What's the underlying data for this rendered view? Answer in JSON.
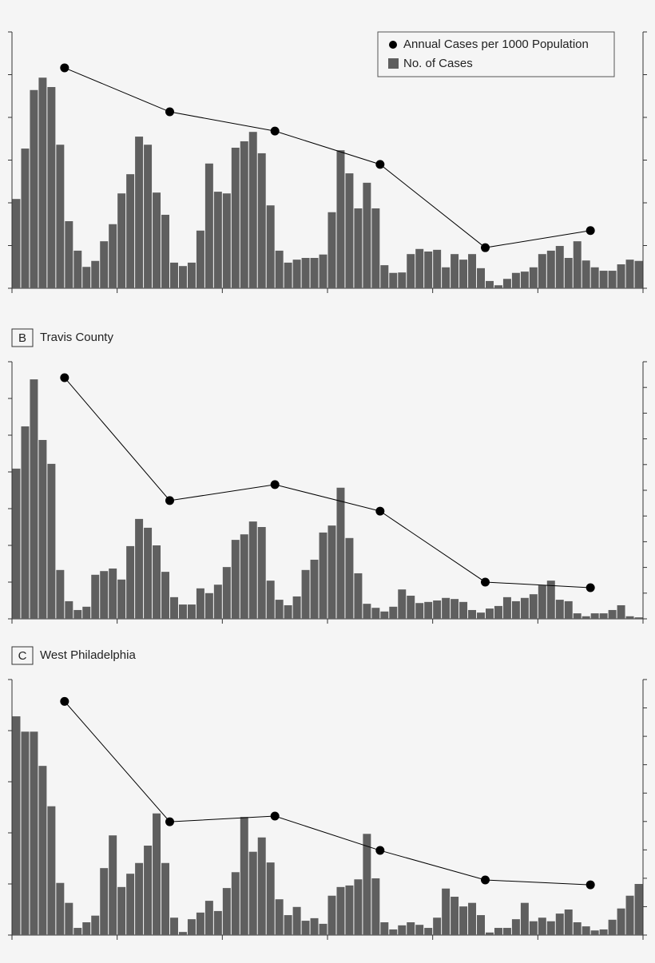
{
  "chart_data": [
    {
      "type": "bar",
      "legend": "upper right",
      "xlim": [
        0,
        72
      ],
      "xticks": [
        0,
        12,
        24,
        36,
        48,
        60,
        72
      ],
      "ylim": [
        0,
        6
      ],
      "yticks": [
        0,
        1,
        2,
        3,
        4,
        5,
        6
      ],
      "y2lim": [
        0,
        6
      ],
      "y2ticks": [
        0,
        1,
        2,
        3,
        4,
        5,
        6
      ],
      "series": [
        {
          "name": "Annual Cases per 1000 Population",
          "type": "line",
          "axis": "y2",
          "color": "#000000",
          "x": [
            6,
            18,
            30,
            42,
            54,
            66
          ],
          "values": [
            5.16,
            4.13,
            3.68,
            2.9,
            0.95,
            1.35
          ]
        },
        {
          "name": "No. of Cases",
          "type": "bar",
          "color": "#5f5f5f",
          "values": [
            2.09,
            3.27,
            4.64,
            4.93,
            4.71,
            3.36,
            1.57,
            0.88,
            0.5,
            0.64,
            1.1,
            1.5,
            2.22,
            2.67,
            3.55,
            3.36,
            2.24,
            1.72,
            0.6,
            0.52,
            0.6,
            1.35,
            2.92,
            2.26,
            2.22,
            3.29,
            3.44,
            3.66,
            3.16,
            1.94,
            0.88,
            0.6,
            0.67,
            0.71,
            0.71,
            0.79,
            1.78,
            3.23,
            2.69,
            1.87,
            2.47,
            1.87,
            0.54,
            0.36,
            0.37,
            0.8,
            0.92,
            0.86,
            0.9,
            0.49,
            0.8,
            0.67,
            0.8,
            0.47,
            0.17,
            0.07,
            0.22,
            0.36,
            0.39,
            0.49,
            0.8,
            0.88,
            0.99,
            0.71,
            1.1,
            0.65,
            0.49,
            0.41,
            0.41,
            0.56,
            0.67,
            0.64
          ]
        }
      ]
    },
    {
      "type": "bar",
      "panel": "B",
      "title": "Travis County",
      "xlim": [
        0,
        72
      ],
      "xticks": [
        0,
        12,
        24,
        36,
        48,
        60,
        72
      ],
      "ylim": [
        0,
        7
      ],
      "yticks": [
        0,
        1,
        2,
        3,
        4,
        5,
        6,
        7
      ],
      "y2lim": [
        0,
        10
      ],
      "y2ticks": [
        0,
        1,
        2,
        3,
        4,
        5,
        6,
        7,
        8,
        9,
        10
      ],
      "series": [
        {
          "type": "line",
          "axis": "y2",
          "color": "#000000",
          "x": [
            6,
            18,
            30,
            42,
            54,
            66
          ],
          "values": [
            9.38,
            4.6,
            5.22,
            4.19,
            1.43,
            1.21
          ]
        },
        {
          "type": "bar",
          "color": "#5f5f5f",
          "values": [
            4.09,
            5.24,
            6.52,
            4.87,
            4.22,
            1.33,
            0.48,
            0.24,
            0.33,
            1.2,
            1.3,
            1.37,
            1.07,
            1.98,
            2.72,
            2.48,
            2,
            1.28,
            0.59,
            0.39,
            0.39,
            0.83,
            0.7,
            0.93,
            1.41,
            2.15,
            2.3,
            2.65,
            2.5,
            1.04,
            0.52,
            0.37,
            0.61,
            1.33,
            1.61,
            2.35,
            2.54,
            3.57,
            2.2,
            1.24,
            0.41,
            0.3,
            0.2,
            0.33,
            0.8,
            0.63,
            0.43,
            0.46,
            0.5,
            0.57,
            0.54,
            0.46,
            0.24,
            0.17,
            0.28,
            0.35,
            0.59,
            0.48,
            0.57,
            0.67,
            0.91,
            1.04,
            0.52,
            0.48,
            0.15,
            0.07,
            0.15,
            0.15,
            0.24,
            0.37,
            0.07,
            0.04
          ]
        }
      ]
    },
    {
      "type": "bar",
      "panel": "C",
      "title": "West Philadelphia",
      "xlim": [
        0,
        72
      ],
      "xticks": [
        0,
        12,
        24,
        36,
        48,
        60,
        72
      ],
      "ylim": [
        0,
        5
      ],
      "yticks": [
        0,
        1,
        2,
        3,
        4,
        5
      ],
      "y2lim": [
        0,
        9
      ],
      "y2ticks": [
        0,
        1,
        2,
        3,
        4,
        5,
        6,
        7,
        8,
        9
      ],
      "series": [
        {
          "type": "line",
          "axis": "y2",
          "color": "#000000",
          "x": [
            6,
            18,
            30,
            42,
            54,
            66
          ],
          "values": [
            8.23,
            3.99,
            4.19,
            2.98,
            1.94,
            1.77
          ]
        },
        {
          "type": "bar",
          "color": "#5f5f5f",
          "values": [
            4.28,
            3.98,
            3.98,
            3.31,
            2.52,
            1.02,
            0.63,
            0.14,
            0.25,
            0.38,
            1.31,
            1.95,
            0.94,
            1.2,
            1.41,
            1.75,
            2.38,
            1.41,
            0.34,
            0.06,
            0.31,
            0.44,
            0.67,
            0.47,
            0.92,
            1.23,
            2.31,
            1.63,
            1.91,
            1.42,
            0.7,
            0.39,
            0.55,
            0.28,
            0.33,
            0.22,
            0.77,
            0.94,
            0.97,
            1.09,
            1.98,
            1.11,
            0.25,
            0.11,
            0.19,
            0.25,
            0.2,
            0.14,
            0.34,
            0.91,
            0.75,
            0.56,
            0.63,
            0.39,
            0.05,
            0.14,
            0.14,
            0.31,
            0.63,
            0.27,
            0.34,
            0.27,
            0.42,
            0.5,
            0.25,
            0.17,
            0.09,
            0.11,
            0.3,
            0.52,
            0.77,
            1.0
          ]
        }
      ]
    }
  ]
}
